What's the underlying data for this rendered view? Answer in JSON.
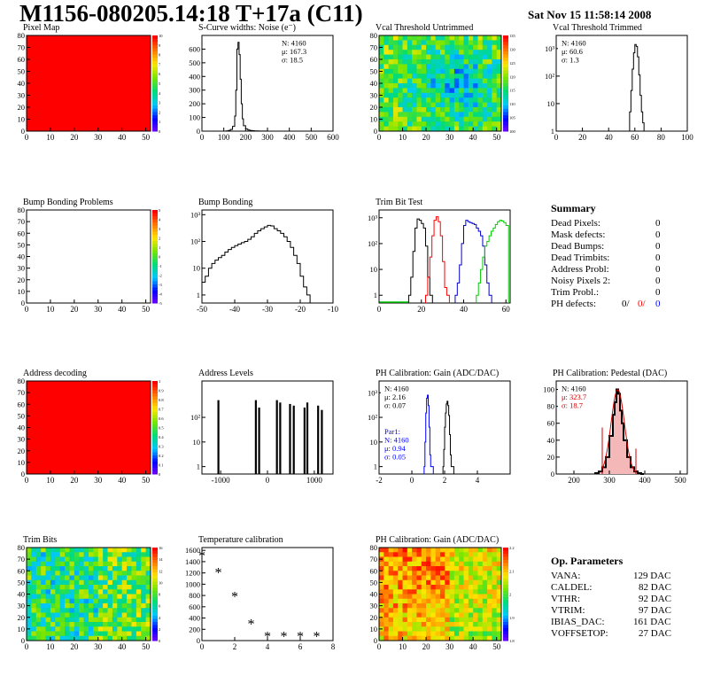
{
  "header": {
    "title": "M1156-080205.14:18 T+17a (C11)",
    "date": "Sat Nov 15 11:58:14 2008"
  },
  "colors": {
    "map_red": "#ff0000",
    "trim_red": "#ff0000",
    "trim_blue": "#0000cc",
    "trim_green": "#00cc00",
    "gain_blue": "#0000ff",
    "pedestal_red": "#cc0000"
  },
  "chart_data": [
    {
      "id": "pixel_map",
      "type": "heatmap",
      "title": "Pixel Map",
      "xlim": [
        0,
        52
      ],
      "ylim": [
        0,
        80
      ],
      "xticks": [
        "0",
        "10",
        "20",
        "30",
        "40",
        "50"
      ],
      "yticks": [
        "0",
        "10",
        "20",
        "30",
        "40",
        "50",
        "60",
        "70",
        "80"
      ],
      "fill": "uniform red (all pixels at maximum)",
      "colorbar": [
        "10",
        "9",
        "8",
        "7",
        "6",
        "5",
        "4",
        "3",
        "2",
        "1",
        "0"
      ]
    },
    {
      "id": "scurve_noise",
      "type": "line",
      "title": "S-Curve widths: Noise (e⁻)",
      "xlim": [
        0,
        600
      ],
      "ylim": [
        0,
        700
      ],
      "xticks": [
        "0",
        "100",
        "200",
        "300",
        "400",
        "500",
        "600"
      ],
      "yticks": [
        "0",
        "100",
        "200",
        "300",
        "400",
        "500",
        "600"
      ],
      "stats": [
        "N: 4160",
        "μ: 167.3",
        "σ: 18.5"
      ],
      "x": [
        100,
        110,
        120,
        130,
        140,
        150,
        155,
        160,
        165,
        170,
        175,
        180,
        185,
        190,
        200,
        210,
        220,
        230,
        240,
        260,
        280,
        300
      ],
      "y": [
        0,
        2,
        5,
        12,
        35,
        110,
        300,
        600,
        650,
        560,
        380,
        200,
        90,
        40,
        15,
        8,
        5,
        3,
        2,
        1,
        1,
        0
      ]
    },
    {
      "id": "vcal_untrimmed",
      "type": "heatmap",
      "title": "Vcal Threshold Untrimmed",
      "xlim": [
        0,
        52
      ],
      "ylim": [
        0,
        80
      ],
      "xticks": [
        "0",
        "10",
        "20",
        "30",
        "40",
        "50"
      ],
      "yticks": [
        "0",
        "10",
        "20",
        "30",
        "40",
        "50",
        "60",
        "70",
        "80"
      ],
      "colorbar": [
        "135",
        "130",
        "125",
        "120",
        "115",
        "110",
        "105",
        "100"
      ]
    },
    {
      "id": "vcal_trimmed",
      "type": "line",
      "title": "Vcal Threshold Trimmed",
      "log_y": true,
      "xlim": [
        0,
        100
      ],
      "ylim_log": [
        1,
        3000
      ],
      "xticks": [
        "0",
        "20",
        "40",
        "60",
        "80",
        "100"
      ],
      "yticks": [
        "1",
        "10",
        "10²",
        "10³"
      ],
      "stats": [
        "N: 4160",
        "μ: 60.6",
        "σ:  1.3"
      ],
      "x": [
        55,
        56,
        57,
        58,
        59,
        60,
        61,
        62,
        63,
        64,
        65,
        66,
        67
      ],
      "y": [
        1,
        5,
        30,
        180,
        700,
        1400,
        1200,
        500,
        110,
        20,
        5,
        2,
        1
      ]
    },
    {
      "id": "bump_problems",
      "type": "heatmap",
      "title": "Bump Bonding Problems",
      "xlim": [
        0,
        52
      ],
      "ylim": [
        0,
        80
      ],
      "xticks": [
        "0",
        "10",
        "20",
        "30",
        "40",
        "50"
      ],
      "yticks": [
        "0",
        "10",
        "20",
        "30",
        "40",
        "50",
        "60",
        "70",
        "80"
      ],
      "fill": "empty",
      "colorbar": [
        "5",
        "4",
        "3",
        "2",
        "1",
        "0",
        "-1",
        "-2",
        "-3",
        "-4",
        "-5"
      ]
    },
    {
      "id": "bump_bonding",
      "type": "line",
      "title": "Bump Bonding",
      "log_y": true,
      "xlim": [
        -50,
        -10
      ],
      "ylim_log": [
        0.5,
        1500
      ],
      "xticks": [
        "-50",
        "-40",
        "-30",
        "-20",
        "-10"
      ],
      "yticks": [
        "1",
        "10",
        "10²",
        "10³"
      ],
      "x": [
        -50,
        -49,
        -48,
        -47,
        -46,
        -45,
        -44,
        -43,
        -42,
        -41,
        -40,
        -39,
        -38,
        -37,
        -36,
        -35,
        -34,
        -33,
        -32,
        -31,
        -30,
        -29,
        -28,
        -27,
        -26,
        -25,
        -24,
        -23,
        -22,
        -21,
        -20,
        -19,
        -18,
        -17,
        -16
      ],
      "y": [
        3,
        5,
        10,
        15,
        20,
        25,
        30,
        40,
        50,
        60,
        70,
        80,
        90,
        100,
        120,
        150,
        200,
        250,
        300,
        350,
        400,
        380,
        300,
        250,
        200,
        150,
        100,
        60,
        30,
        15,
        5,
        2,
        1,
        0.5,
        0.5
      ]
    },
    {
      "id": "trim_bit_test",
      "type": "line",
      "title": "Trim Bit Test",
      "log_y": true,
      "xlim": [
        0,
        60
      ],
      "ylim_log": [
        0.5,
        2000
      ],
      "xticks": [
        "0",
        "20",
        "40",
        "60"
      ],
      "yticks": [
        "1",
        "10",
        "10²",
        "10³"
      ],
      "series": [
        {
          "color": "#000000",
          "x": [
            14,
            15,
            16,
            17,
            18,
            19,
            20,
            21,
            22,
            23,
            24
          ],
          "y": [
            1,
            5,
            50,
            400,
            900,
            800,
            600,
            400,
            80,
            5,
            1
          ]
        },
        {
          "color": "#ff0000",
          "x": [
            22,
            23,
            24,
            25,
            26,
            27,
            28,
            29,
            30,
            31,
            32
          ],
          "y": [
            1,
            5,
            30,
            200,
            800,
            1100,
            700,
            200,
            20,
            2,
            1
          ]
        },
        {
          "color": "#0000cc",
          "x": [
            36,
            37,
            38,
            39,
            40,
            41,
            42,
            43,
            44,
            45,
            46,
            47,
            48,
            49,
            50,
            51,
            52
          ],
          "y": [
            1,
            3,
            15,
            100,
            500,
            800,
            700,
            650,
            600,
            550,
            400,
            300,
            200,
            80,
            15,
            3,
            1
          ]
        },
        {
          "color": "#00cc00",
          "x": [
            46,
            47,
            48,
            49,
            50,
            51,
            52,
            53,
            54,
            55,
            56,
            57,
            58,
            59,
            60
          ],
          "y": [
            1,
            3,
            10,
            30,
            80,
            120,
            200,
            300,
            400,
            550,
            700,
            800,
            750,
            650,
            500
          ]
        }
      ]
    },
    {
      "id": "summary",
      "type": "table",
      "title": "Summary",
      "rows": [
        {
          "label": "Dead Pixels:",
          "value": "0"
        },
        {
          "label": "Mask defects:",
          "value": "0"
        },
        {
          "label": "Dead Bumps:",
          "value": "0"
        },
        {
          "label": "Dead Trimbits:",
          "value": "0"
        },
        {
          "label": "Address Probl:",
          "value": "0"
        },
        {
          "label": "Noisy Pixels 2:",
          "value": "0"
        },
        {
          "label": "Trim Probl.:",
          "value": "0"
        }
      ],
      "ph_defects": {
        "label": "PH defects:",
        "values": [
          "0/",
          "0/",
          "0"
        ]
      }
    },
    {
      "id": "address_decoding",
      "type": "heatmap",
      "title": "Address decoding",
      "xlim": [
        0,
        52
      ],
      "ylim": [
        0,
        80
      ],
      "xticks": [
        "0",
        "10",
        "20",
        "30",
        "40",
        "50"
      ],
      "yticks": [
        "0",
        "10",
        "20",
        "30",
        "40",
        "50",
        "60",
        "70",
        "80"
      ],
      "fill": "uniform red (all pixels at maximum)",
      "colorbar": [
        "1",
        "0.9",
        "0.8",
        "0.7",
        "0.6",
        "0.5",
        "0.4",
        "0.3",
        "0.2",
        "0.1",
        "0"
      ]
    },
    {
      "id": "address_levels",
      "type": "bar",
      "title": "Address Levels",
      "log_y": true,
      "xlim": [
        -1400,
        1400
      ],
      "ylim_log": [
        0.5,
        3000
      ],
      "xticks": [
        "-1000",
        "0",
        "1000"
      ],
      "yticks": [
        "1",
        "10",
        "10²"
      ],
      "x": [
        -1050,
        -250,
        -180,
        200,
        270,
        480,
        560,
        790,
        850,
        1080,
        1160
      ],
      "y": [
        500,
        500,
        250,
        500,
        400,
        350,
        300,
        250,
        400,
        300,
        200
      ]
    },
    {
      "id": "ph_gain",
      "type": "line",
      "title": "PH Calibration: Gain (ADC/DAC)",
      "log_y": true,
      "xlim": [
        -2,
        6
      ],
      "ylim_log": [
        0.5,
        3000
      ],
      "xticks": [
        "-2",
        "0",
        "2",
        "4"
      ],
      "yticks": [
        "1",
        "10",
        "10²",
        "10³"
      ],
      "stats": [
        "N: 4160",
        "μ: 2.16",
        "σ: 0.07"
      ],
      "par1_stats": [
        "Par1:",
        "N: 4160",
        "μ: 0.94",
        "σ: 0.05"
      ],
      "series": [
        {
          "color": "#000000",
          "x": [
            1.9,
            1.95,
            2.0,
            2.05,
            2.1,
            2.15,
            2.2,
            2.25,
            2.3,
            2.35,
            2.4
          ],
          "y": [
            1,
            5,
            40,
            150,
            350,
            450,
            300,
            120,
            20,
            3,
            1
          ]
        },
        {
          "color": "#0000ff",
          "x": [
            0.75,
            0.8,
            0.85,
            0.9,
            0.95,
            1.0,
            1.05,
            1.1,
            1.15
          ],
          "y": [
            1,
            10,
            150,
            600,
            800,
            300,
            40,
            3,
            1
          ]
        }
      ]
    },
    {
      "id": "ph_pedestal",
      "type": "line",
      "title": "PH Calibration: Pedestal (DAC)",
      "xlim": [
        150,
        520
      ],
      "ylim": [
        0,
        110
      ],
      "xticks": [
        "200",
        "300",
        "400",
        "500"
      ],
      "yticks": [
        "0",
        "20",
        "40",
        "60",
        "80",
        "100"
      ],
      "stats": [
        "N: 4160",
        "μ: 323.7",
        "σ: 18.7"
      ],
      "x": [
        260,
        270,
        280,
        290,
        300,
        310,
        315,
        320,
        325,
        330,
        335,
        340,
        350,
        360,
        370,
        380,
        390
      ],
      "y": [
        1,
        3,
        8,
        20,
        45,
        70,
        85,
        100,
        95,
        75,
        60,
        40,
        20,
        8,
        3,
        1,
        0
      ]
    },
    {
      "id": "trim_bits",
      "type": "heatmap",
      "title": "Trim Bits",
      "xlim": [
        0,
        52
      ],
      "ylim": [
        0,
        80
      ],
      "xticks": [
        "0",
        "10",
        "20",
        "30",
        "40",
        "50"
      ],
      "yticks": [
        "0",
        "10",
        "20",
        "30",
        "40",
        "50",
        "60",
        "70",
        "80"
      ],
      "colorbar": [
        "16",
        "14",
        "12",
        "10",
        "8",
        "6",
        "4",
        "2",
        "0"
      ]
    },
    {
      "id": "temperature_calibration",
      "type": "scatter",
      "title": "Temperature calibration",
      "xlim": [
        0,
        8
      ],
      "ylim": [
        0,
        1650
      ],
      "xticks": [
        "0",
        "2",
        "4",
        "6",
        "8"
      ],
      "yticks": [
        "0",
        "200",
        "400",
        "600",
        "800",
        "1000",
        "1200",
        "1400",
        "1600"
      ],
      "x": [
        0,
        1,
        2,
        3,
        4,
        5,
        6,
        7
      ],
      "y": [
        1500,
        1200,
        780,
        290,
        70,
        70,
        70,
        70
      ]
    },
    {
      "id": "ph_gain_map",
      "type": "heatmap",
      "title": "PH Calibration: Gain (ADC/DAC)",
      "xlim": [
        0,
        52
      ],
      "ylim": [
        0,
        80
      ],
      "xticks": [
        "0",
        "10",
        "20",
        "30",
        "40",
        "50"
      ],
      "yticks": [
        "0",
        "10",
        "20",
        "30",
        "40",
        "50",
        "60",
        "70",
        "80"
      ],
      "colorbar": [
        "2.2",
        "2.1",
        "2",
        "1.9",
        "1.8"
      ]
    },
    {
      "id": "op_parameters",
      "type": "table",
      "title": "Op. Parameters",
      "rows": [
        {
          "label": "VANA:",
          "value": "129 DAC"
        },
        {
          "label": "CALDEL:",
          "value": "82 DAC"
        },
        {
          "label": "VTHR:",
          "value": "92 DAC"
        },
        {
          "label": "VTRIM:",
          "value": "97 DAC"
        },
        {
          "label": "IBIAS_DAC:",
          "value": "161 DAC"
        },
        {
          "label": "VOFFSETOP:",
          "value": "27 DAC"
        }
      ]
    }
  ]
}
